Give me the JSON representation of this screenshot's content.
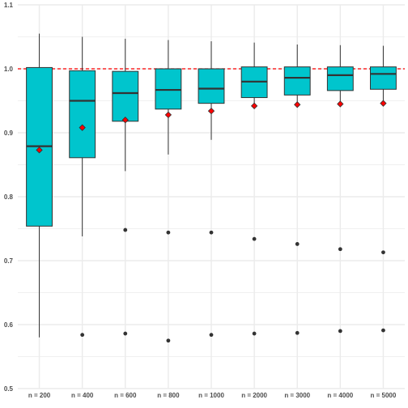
{
  "chart_data": {
    "type": "boxplot",
    "categories": [
      "n = 200",
      "n = 400",
      "n = 600",
      "n = 800",
      "n = 1000",
      "n = 2000",
      "n = 3000",
      "n = 4000",
      "n = 5000"
    ],
    "yticks": [
      "0.5",
      "0.6",
      "0.7",
      "0.8",
      "0.9",
      "1.0",
      "1.1"
    ],
    "ytick_values": [
      0.5,
      0.6,
      0.7,
      0.8,
      0.9,
      1.0,
      1.1
    ],
    "ylim": [
      0.5,
      1.1
    ],
    "reference_line": 1.0,
    "boxes": [
      {
        "category": "n = 200",
        "whisker_low": 0.58,
        "q1": 0.754,
        "median": 0.879,
        "q3": 1.002,
        "whisker_high": 1.055,
        "mean": 0.873,
        "outliers": []
      },
      {
        "category": "n = 400",
        "whisker_low": 0.738,
        "q1": 0.861,
        "median": 0.95,
        "q3": 0.997,
        "whisker_high": 1.05,
        "mean": 0.908,
        "outliers": [
          0.584
        ]
      },
      {
        "category": "n = 600",
        "whisker_low": 0.84,
        "q1": 0.918,
        "median": 0.962,
        "q3": 0.996,
        "whisker_high": 1.047,
        "mean": 0.92,
        "outliers": [
          0.748,
          0.586
        ]
      },
      {
        "category": "n = 800",
        "whisker_low": 0.866,
        "q1": 0.937,
        "median": 0.967,
        "q3": 1.0,
        "whisker_high": 1.045,
        "mean": 0.928,
        "outliers": [
          0.744,
          0.575
        ]
      },
      {
        "category": "n = 1000",
        "whisker_low": 0.889,
        "q1": 0.946,
        "median": 0.969,
        "q3": 1.0,
        "whisker_high": 1.043,
        "mean": 0.934,
        "outliers": [
          0.744,
          0.584
        ]
      },
      {
        "category": "n = 2000",
        "whisker_low": 0.939,
        "q1": 0.955,
        "median": 0.98,
        "q3": 1.003,
        "whisker_high": 1.041,
        "mean": 0.942,
        "outliers": [
          0.734,
          0.586
        ]
      },
      {
        "category": "n = 3000",
        "whisker_low": 0.946,
        "q1": 0.959,
        "median": 0.986,
        "q3": 1.003,
        "whisker_high": 1.038,
        "mean": 0.944,
        "outliers": [
          0.726,
          0.587
        ]
      },
      {
        "category": "n = 4000",
        "whisker_low": 0.947,
        "q1": 0.966,
        "median": 0.99,
        "q3": 1.003,
        "whisker_high": 1.037,
        "mean": 0.945,
        "outliers": [
          0.718,
          0.59
        ]
      },
      {
        "category": "n = 5000",
        "whisker_low": 0.95,
        "q1": 0.968,
        "median": 0.992,
        "q3": 1.003,
        "whisker_high": 1.036,
        "mean": 0.946,
        "outliers": [
          0.713,
          0.591
        ]
      }
    ],
    "colors": {
      "box_fill": "#00c5cd",
      "box_stroke": "#333333",
      "mean_fill": "#ff0000",
      "mean_stroke": "#333333",
      "outlier": "#333333",
      "reference_line": "#ff0000",
      "grid": "#ebebeb"
    },
    "grid": true,
    "legend": "none"
  }
}
